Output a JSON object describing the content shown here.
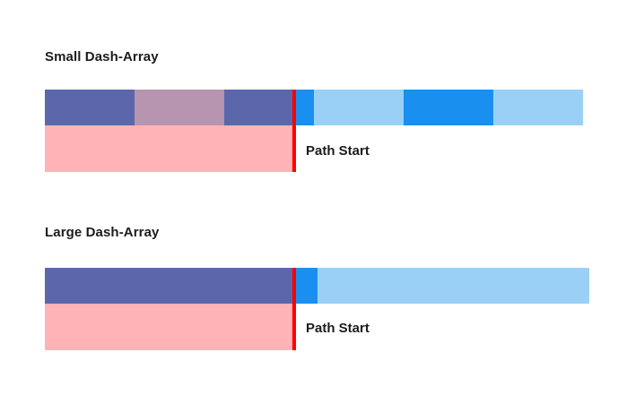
{
  "diagrams": [
    {
      "heading": "Small Dash-Array",
      "caption": "Path Start",
      "colors": {
        "dash_before": "#5c67ab",
        "gap_before": "#b794af",
        "dash_after": "#1990f0",
        "gap_after": "#9bd0f6",
        "offset_region": "#ffb3b6",
        "path_start_marker": "#ff0000"
      }
    },
    {
      "heading": "Large Dash-Array",
      "caption": "Path Start",
      "colors": {
        "dash_before": "#5c67ab",
        "dash_after": "#1990f0",
        "gap_after": "#9bd0f6",
        "offset_region": "#ffb3b6",
        "path_start_marker": "#ff0000"
      }
    }
  ]
}
